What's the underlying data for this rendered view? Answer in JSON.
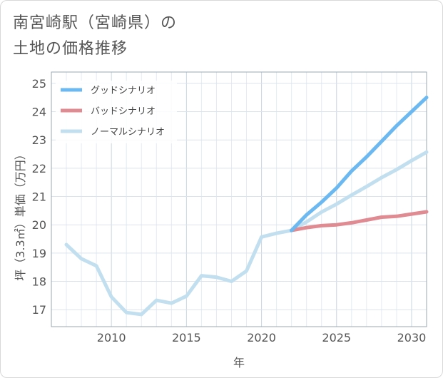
{
  "page": {
    "title_line1": "南宮崎駅（宮崎県）の",
    "title_line2": "土地の価格推移"
  },
  "chart_data": {
    "type": "line",
    "title": "南宮崎駅（宮崎県）の土地の価格推移",
    "xlabel": "年",
    "ylabel": "坪（3.3㎡）単価（万円）",
    "xlim": [
      2006,
      2031
    ],
    "ylim": [
      16.4,
      25.4
    ],
    "xticks": [
      2010,
      2015,
      2020,
      2025,
      2030
    ],
    "yticks": [
      17,
      18,
      19,
      20,
      21,
      22,
      23,
      24,
      25
    ],
    "grid": true,
    "legend_position": "top-left",
    "series": [
      {
        "name": "グッドシナリオ",
        "color": "#6bb9f0",
        "x": [
          2022,
          2023,
          2024,
          2025,
          2026,
          2027,
          2028,
          2029,
          2030,
          2031
        ],
        "y": [
          19.8,
          20.35,
          20.8,
          21.3,
          21.9,
          22.4,
          22.95,
          23.5,
          24.0,
          24.5
        ]
      },
      {
        "name": "バッドシナリオ",
        "color": "#e08a92",
        "x": [
          2022,
          2023,
          2024,
          2025,
          2026,
          2027,
          2028,
          2029,
          2030,
          2031
        ],
        "y": [
          19.8,
          19.9,
          19.97,
          20.0,
          20.07,
          20.17,
          20.27,
          20.3,
          20.38,
          20.46
        ]
      },
      {
        "name": "ノーマルシナリオ",
        "color": "#c2dff0",
        "x": [
          2007,
          2008,
          2009,
          2010,
          2011,
          2012,
          2013,
          2014,
          2015,
          2016,
          2017,
          2018,
          2019,
          2020,
          2021,
          2022,
          2023,
          2024,
          2025,
          2026,
          2027,
          2028,
          2029,
          2030,
          2031
        ],
        "y": [
          19.3,
          18.8,
          18.55,
          17.45,
          16.9,
          16.83,
          17.33,
          17.23,
          17.48,
          18.2,
          18.15,
          18.0,
          18.37,
          19.57,
          19.7,
          19.8,
          20.1,
          20.45,
          20.73,
          21.05,
          21.35,
          21.67,
          21.95,
          22.27,
          22.57
        ]
      }
    ]
  }
}
